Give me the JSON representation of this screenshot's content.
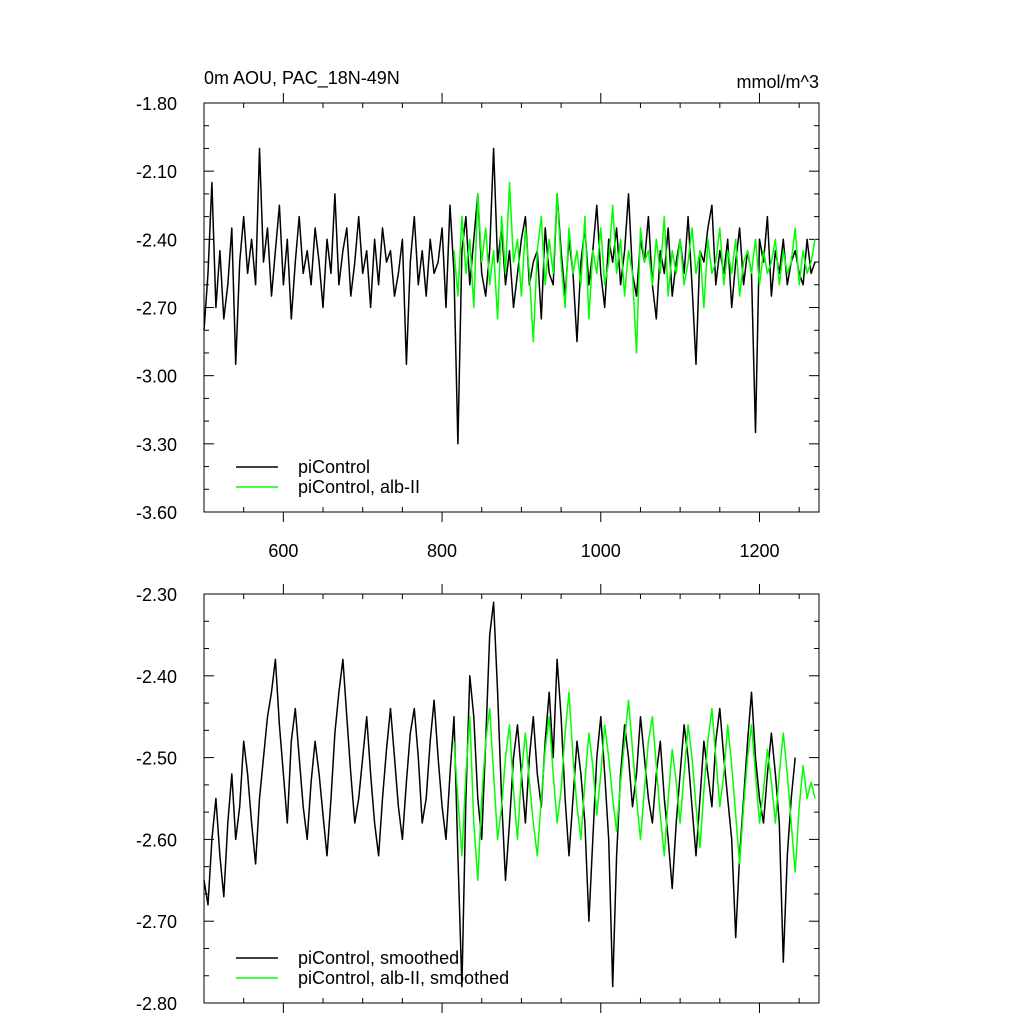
{
  "chart_data": [
    {
      "type": "line",
      "title": "0m AOU, PAC_18N-49N",
      "units": "mmol/m^3",
      "xlim": [
        500,
        1275
      ],
      "ylim": [
        -3.6,
        -1.8
      ],
      "xticks": [
        600,
        800,
        1000,
        1200
      ],
      "xtick_labels": [
        "600",
        "800",
        "1000",
        "1200"
      ],
      "yticks": [
        -3.6,
        -3.3,
        -3.0,
        -2.7,
        -2.4,
        -2.1,
        -1.8
      ],
      "ytick_labels": [
        "-3.60",
        "-3.30",
        "-3.00",
        "-2.70",
        "-2.40",
        "-2.10",
        "-1.80"
      ],
      "legend_position": "bottom-left",
      "series": [
        {
          "name": "piControl",
          "color": "#000000",
          "x_start": 500,
          "x_step": 5,
          "values": [
            -2.8,
            -2.55,
            -2.15,
            -2.7,
            -2.45,
            -2.75,
            -2.6,
            -2.35,
            -2.95,
            -2.5,
            -2.3,
            -2.55,
            -2.4,
            -2.6,
            -2.0,
            -2.5,
            -2.35,
            -2.65,
            -2.45,
            -2.25,
            -2.6,
            -2.4,
            -2.75,
            -2.5,
            -2.3,
            -2.55,
            -2.45,
            -2.6,
            -2.35,
            -2.5,
            -2.7,
            -2.4,
            -2.55,
            -2.2,
            -2.6,
            -2.45,
            -2.35,
            -2.65,
            -2.5,
            -2.3,
            -2.55,
            -2.45,
            -2.7,
            -2.4,
            -2.6,
            -2.35,
            -2.5,
            -2.45,
            -2.65,
            -2.55,
            -2.4,
            -2.95,
            -2.5,
            -2.3,
            -2.6,
            -2.45,
            -2.65,
            -2.4,
            -2.55,
            -2.5,
            -2.35,
            -2.7,
            -2.25,
            -2.55,
            -3.3,
            -2.45,
            -2.3,
            -2.6,
            -2.4,
            -2.2,
            -2.55,
            -2.65,
            -2.45,
            -2.0,
            -2.5,
            -2.35,
            -2.6,
            -2.45,
            -2.7,
            -2.55,
            -2.4,
            -2.3,
            -2.6,
            -2.5,
            -2.45,
            -2.75,
            -2.35,
            -2.55,
            -2.6,
            -2.2,
            -2.45,
            -2.65,
            -2.4,
            -2.55,
            -2.85,
            -2.5,
            -2.35,
            -2.6,
            -2.45,
            -2.25,
            -2.55,
            -2.7,
            -2.4,
            -2.5,
            -2.35,
            -2.6,
            -2.45,
            -2.2,
            -2.55,
            -2.65,
            -2.4,
            -2.5,
            -2.3,
            -2.6,
            -2.75,
            -2.45,
            -2.55,
            -2.35,
            -2.65,
            -2.5,
            -2.4,
            -2.55,
            -2.3,
            -2.6,
            -2.95,
            -2.45,
            -2.5,
            -2.35,
            -2.25,
            -2.6,
            -2.45,
            -2.55,
            -2.4,
            -2.7,
            -2.5,
            -2.35,
            -2.6,
            -2.45,
            -2.55,
            -3.25,
            -2.4,
            -2.5,
            -2.3,
            -2.65,
            -2.45,
            -2.55,
            -2.4,
            -2.6,
            -2.5,
            -2.45,
            -2.55,
            -2.6,
            -2.4,
            -2.55,
            -2.5
          ]
        },
        {
          "name": "piControl, alb-II",
          "color": "#00ff00",
          "x_start": 815,
          "x_step": 5,
          "values": [
            -2.45,
            -2.65,
            -2.3,
            -2.55,
            -2.4,
            -2.7,
            -2.2,
            -2.5,
            -2.35,
            -2.6,
            -2.45,
            -2.75,
            -2.3,
            -2.55,
            -2.15,
            -2.5,
            -2.4,
            -2.65,
            -2.35,
            -2.55,
            -2.85,
            -2.45,
            -2.3,
            -2.6,
            -2.4,
            -2.55,
            -2.2,
            -2.5,
            -2.7,
            -2.35,
            -2.55,
            -2.45,
            -2.6,
            -2.3,
            -2.75,
            -2.45,
            -2.55,
            -2.35,
            -2.6,
            -2.5,
            -2.25,
            -2.55,
            -2.4,
            -2.65,
            -2.45,
            -2.55,
            -2.9,
            -2.35,
            -2.5,
            -2.45,
            -2.6,
            -2.4,
            -2.55,
            -2.3,
            -2.65,
            -2.45,
            -2.55,
            -2.4,
            -2.6,
            -2.5,
            -2.35,
            -2.55,
            -2.45,
            -2.7,
            -2.4,
            -2.55,
            -2.5,
            -2.35,
            -2.6,
            -2.45,
            -2.55,
            -2.4,
            -2.65,
            -2.5,
            -2.45,
            -2.55,
            -2.4,
            -2.6,
            -2.45,
            -2.55,
            -2.5,
            -2.4,
            -2.6,
            -2.45,
            -2.55,
            -2.5,
            -2.35,
            -2.6,
            -2.45,
            -2.55,
            -2.5,
            -2.4
          ]
        }
      ]
    },
    {
      "type": "line",
      "xlim": [
        500,
        1275
      ],
      "ylim": [
        -2.8,
        -2.3
      ],
      "xticks": [
        600,
        800,
        1000,
        1200
      ],
      "yticks": [
        -2.8,
        -2.7,
        -2.6,
        -2.5,
        -2.4,
        -2.3
      ],
      "ytick_labels": [
        "-2.80",
        "-2.70",
        "-2.60",
        "-2.50",
        "-2.40",
        "-2.30"
      ],
      "legend_position": "bottom-left",
      "series": [
        {
          "name": "piControl, smoothed",
          "color": "#000000",
          "x_start": 500,
          "x_step": 5,
          "values": [
            -2.65,
            -2.68,
            -2.6,
            -2.55,
            -2.62,
            -2.67,
            -2.58,
            -2.52,
            -2.6,
            -2.56,
            -2.48,
            -2.52,
            -2.58,
            -2.63,
            -2.55,
            -2.5,
            -2.45,
            -2.42,
            -2.38,
            -2.46,
            -2.52,
            -2.58,
            -2.48,
            -2.44,
            -2.5,
            -2.56,
            -2.6,
            -2.53,
            -2.48,
            -2.52,
            -2.57,
            -2.62,
            -2.55,
            -2.47,
            -2.42,
            -2.38,
            -2.45,
            -2.52,
            -2.58,
            -2.55,
            -2.5,
            -2.45,
            -2.52,
            -2.58,
            -2.62,
            -2.55,
            -2.49,
            -2.44,
            -2.5,
            -2.56,
            -2.6,
            -2.53,
            -2.47,
            -2.44,
            -2.5,
            -2.58,
            -2.55,
            -2.48,
            -2.43,
            -2.5,
            -2.56,
            -2.6,
            -2.52,
            -2.45,
            -2.62,
            -2.78,
            -2.55,
            -2.4,
            -2.45,
            -2.55,
            -2.6,
            -2.48,
            -2.35,
            -2.31,
            -2.42,
            -2.55,
            -2.65,
            -2.58,
            -2.5,
            -2.46,
            -2.52,
            -2.58,
            -2.5,
            -2.45,
            -2.52,
            -2.56,
            -2.48,
            -2.42,
            -2.5,
            -2.38,
            -2.45,
            -2.55,
            -2.62,
            -2.55,
            -2.48,
            -2.52,
            -2.58,
            -2.7,
            -2.6,
            -2.5,
            -2.45,
            -2.52,
            -2.6,
            -2.78,
            -2.62,
            -2.52,
            -2.46,
            -2.5,
            -2.56,
            -2.52,
            -2.45,
            -2.5,
            -2.55,
            -2.58,
            -2.52,
            -2.48,
            -2.55,
            -2.6,
            -2.66,
            -2.58,
            -2.52,
            -2.46,
            -2.5,
            -2.56,
            -2.62,
            -2.55,
            -2.48,
            -2.52,
            -2.56,
            -2.48,
            -2.44,
            -2.5,
            -2.55,
            -2.6,
            -2.72,
            -2.62,
            -2.55,
            -2.48,
            -2.42,
            -2.5,
            -2.55,
            -2.58,
            -2.52,
            -2.47,
            -2.52,
            -2.58,
            -2.75,
            -2.62,
            -2.55,
            -2.5
          ]
        },
        {
          "name": "piControl, alb-II, smoothed",
          "color": "#00ff00",
          "x_start": 815,
          "x_step": 5,
          "values": [
            -2.48,
            -2.55,
            -2.62,
            -2.52,
            -2.45,
            -2.58,
            -2.65,
            -2.55,
            -2.48,
            -2.44,
            -2.52,
            -2.6,
            -2.56,
            -2.5,
            -2.46,
            -2.54,
            -2.6,
            -2.52,
            -2.47,
            -2.53,
            -2.58,
            -2.62,
            -2.55,
            -2.49,
            -2.45,
            -2.52,
            -2.58,
            -2.54,
            -2.47,
            -2.42,
            -2.5,
            -2.56,
            -2.6,
            -2.53,
            -2.47,
            -2.51,
            -2.57,
            -2.52,
            -2.46,
            -2.5,
            -2.55,
            -2.59,
            -2.53,
            -2.48,
            -2.43,
            -2.49,
            -2.55,
            -2.6,
            -2.54,
            -2.48,
            -2.45,
            -2.51,
            -2.57,
            -2.62,
            -2.55,
            -2.49,
            -2.53,
            -2.58,
            -2.52,
            -2.46,
            -2.5,
            -2.56,
            -2.61,
            -2.54,
            -2.48,
            -2.44,
            -2.5,
            -2.56,
            -2.52,
            -2.46,
            -2.51,
            -2.57,
            -2.63,
            -2.56,
            -2.5,
            -2.46,
            -2.52,
            -2.58,
            -2.54,
            -2.49,
            -2.53,
            -2.58,
            -2.52,
            -2.47,
            -2.52,
            -2.58,
            -2.64,
            -2.56,
            -2.51,
            -2.55,
            -2.53,
            -2.55
          ]
        }
      ]
    }
  ]
}
